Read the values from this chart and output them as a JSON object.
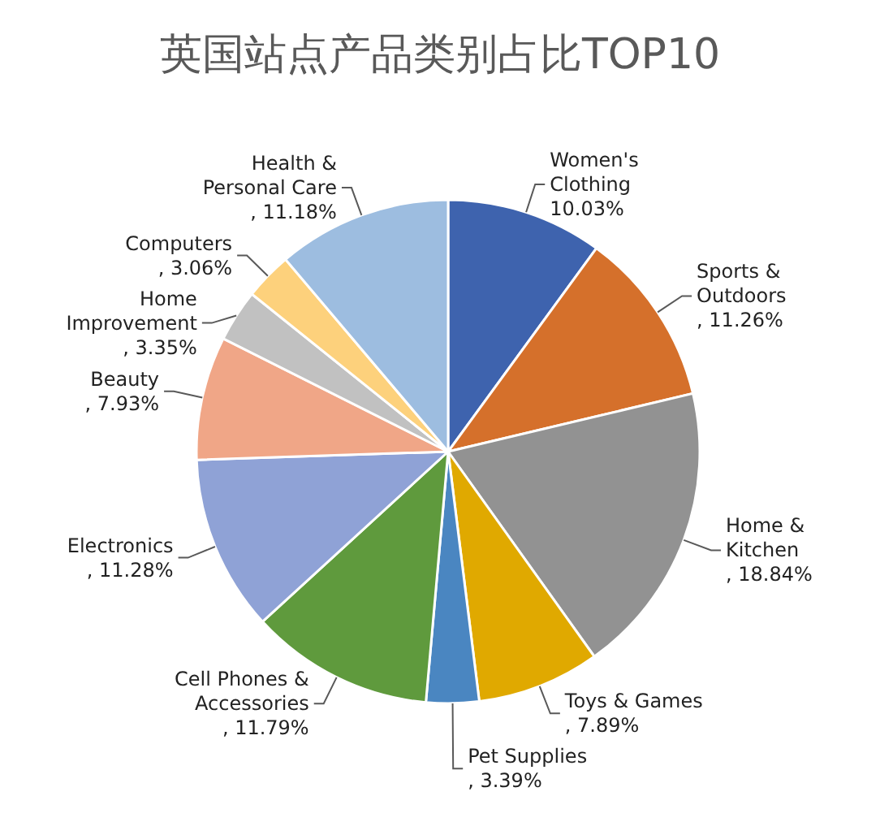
{
  "chart_data": {
    "type": "pie",
    "title": "英国站点产品类别占比TOP10",
    "categories": [
      "Women's Clothing",
      "Sports & Outdoors",
      "Home & Kitchen",
      "Toys & Games",
      "Pet Supplies",
      "Cell Phones & Accessories",
      "Electronics",
      "Beauty",
      "Home Improvement",
      "Computers",
      "Health & Personal Care"
    ],
    "values": [
      10.03,
      11.26,
      18.84,
      7.89,
      3.39,
      11.79,
      11.28,
      7.93,
      3.35,
      3.06,
      11.18
    ],
    "value_labels": [
      "10.03%",
      ", 11.26%",
      ", 18.84%",
      ", 7.89%",
      ", 3.39%",
      ", 11.79%",
      ", 11.28%",
      ", 7.93%",
      ", 3.35%",
      ", 3.06%",
      ", 11.18%"
    ],
    "colors": [
      "#3e63ae",
      "#d5702b",
      "#929292",
      "#e0a900",
      "#4a86c1",
      "#5f9a3d",
      "#8fa2d6",
      "#f0a687",
      "#c1c1c1",
      "#fdd17c",
      "#9dbde0"
    ]
  }
}
